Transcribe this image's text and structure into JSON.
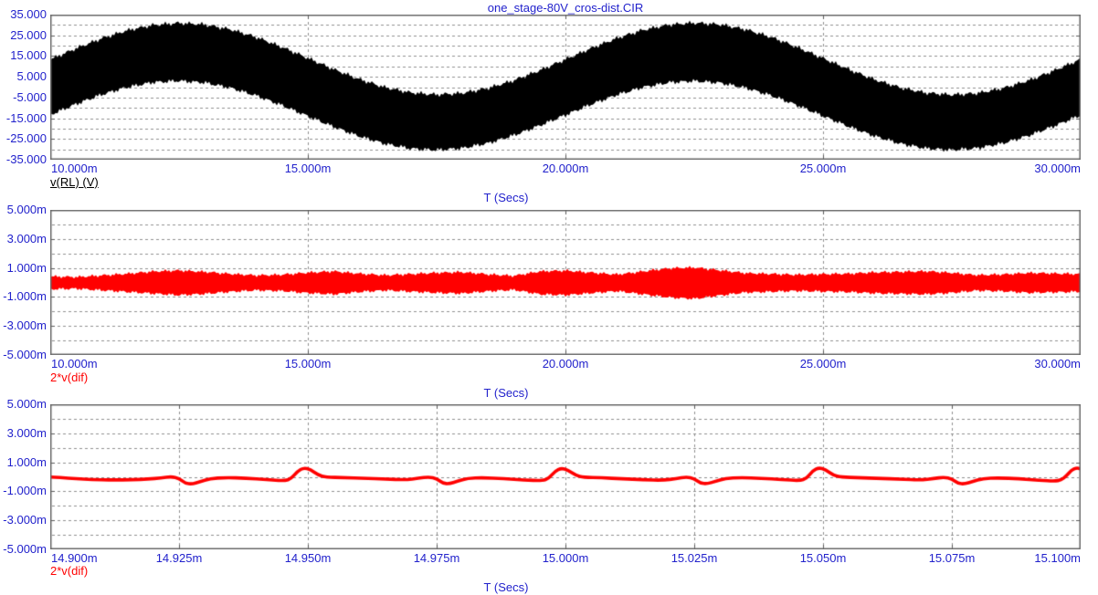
{
  "window": {
    "background": "#ffffff"
  },
  "colors": {
    "axis_text": "#2222cc",
    "grid": "#8f8f8f",
    "frame": "#6e6e6e",
    "tick": "#5a5a5a",
    "trace_black": "#000000",
    "trace_red": "#ff0000"
  },
  "chart_data": [
    {
      "id": "plot1",
      "type": "band",
      "title": "one_stage-80V_cros-dist.CIR",
      "xlabel": "T (Secs)",
      "xlim_ms": [
        10,
        30
      ],
      "ylim": [
        -35,
        35
      ],
      "grid_step": {
        "x_ms": 5,
        "y": 5
      },
      "x_ticks": {
        "values_ms": [
          10,
          15,
          20,
          25,
          30
        ],
        "labels": [
          "10.000m",
          "15.000m",
          "20.000m",
          "25.000m",
          "30.000m"
        ]
      },
      "y_ticks": {
        "values": [
          35,
          25,
          15,
          5,
          -5,
          -15,
          -25,
          -35
        ],
        "labels": [
          "35.000",
          "25.000",
          "15.000",
          "5.000",
          "-5.000",
          "-15.000",
          "-25.000",
          "-35.000"
        ]
      },
      "series": [
        {
          "name": "v(RL)",
          "label": "v(RL) (V)",
          "color": "#000000"
        }
      ],
      "description": "100 Hz sine (amplitude ~17 V) fully filled by high-frequency carrier ripple ~±13.7 V; appears as solid black band",
      "band": {
        "x_ms": [
          10,
          10.5,
          11,
          11.5,
          12,
          12.5,
          13,
          13.5,
          14,
          14.5,
          15,
          15.5,
          16,
          16.5,
          17,
          17.5,
          18,
          18.5,
          19,
          19.5,
          20,
          20.5,
          21,
          21.5,
          22,
          22.5,
          23,
          23.5,
          24,
          24.5,
          25,
          25.5,
          26,
          26.5,
          27,
          27.5,
          28,
          28.5,
          29,
          29.5,
          30
        ],
        "top": [
          13.7,
          18.95,
          23.69,
          27.45,
          29.87,
          30.7,
          29.87,
          27.45,
          23.69,
          18.95,
          13.7,
          8.45,
          3.71,
          -0.05,
          -2.47,
          -3.3,
          -2.47,
          -0.05,
          3.71,
          8.45,
          13.7,
          18.95,
          23.69,
          27.45,
          29.87,
          30.7,
          29.87,
          27.45,
          23.69,
          18.95,
          13.7,
          8.45,
          3.71,
          -0.05,
          -2.47,
          -3.3,
          -2.47,
          -0.05,
          3.71,
          8.45,
          13.7
        ],
        "bottom": [
          -13.7,
          -8.45,
          -3.71,
          0.05,
          2.47,
          3.3,
          2.47,
          0.05,
          -3.71,
          -8.45,
          -13.7,
          -18.95,
          -23.69,
          -27.45,
          -29.87,
          -30.7,
          -29.87,
          -27.45,
          -23.69,
          -18.95,
          -13.7,
          -8.45,
          -3.71,
          0.05,
          2.47,
          3.3,
          2.47,
          0.05,
          -3.71,
          -8.45,
          -13.7,
          -18.95,
          -23.69,
          -27.45,
          -29.87,
          -30.7,
          -29.87,
          -27.45,
          -23.69,
          -18.95,
          -13.7
        ]
      }
    },
    {
      "id": "plot2",
      "type": "band",
      "title": "",
      "xlabel": "T (Secs)",
      "xlim_ms": [
        10,
        30
      ],
      "ylim": [
        -5,
        5
      ],
      "unit": "mV (axis labels use m suffix)",
      "grid_step": {
        "x_ms": 5,
        "y": 1
      },
      "x_ticks": {
        "values_ms": [
          10,
          15,
          20,
          25,
          30
        ],
        "labels": [
          "10.000m",
          "15.000m",
          "20.000m",
          "25.000m",
          "30.000m"
        ]
      },
      "y_ticks": {
        "values": [
          5,
          3,
          1,
          -1,
          -3,
          -5
        ],
        "labels": [
          "5.000m",
          "3.000m",
          "1.000m",
          "-1.000m",
          "-3.000m",
          "-5.000m"
        ]
      },
      "series": [
        {
          "name": "2*v(dif)",
          "label": "2*v(dif)",
          "color": "#ff0000"
        }
      ],
      "description": "Dense high-frequency error signal; amplitude-modulated band about 0, envelope ±0.3m to ±1.1m",
      "band": {
        "x_ms": [
          10,
          10.5,
          11,
          11.5,
          12,
          12.5,
          13,
          13.5,
          14,
          14.5,
          15,
          15.5,
          16,
          16.5,
          17,
          17.5,
          18,
          18.5,
          19,
          19.5,
          20,
          20.5,
          21,
          21.5,
          22,
          22.5,
          23,
          23.5,
          24,
          24.5,
          25,
          25.5,
          26,
          26.5,
          27,
          27.5,
          28,
          28.5,
          29,
          29.5,
          30
        ],
        "top": [
          0.45,
          0.4,
          0.5,
          0.6,
          0.75,
          0.8,
          0.7,
          0.55,
          0.45,
          0.5,
          0.65,
          0.75,
          0.6,
          0.5,
          0.6,
          0.7,
          0.75,
          0.6,
          0.5,
          0.8,
          0.85,
          0.7,
          0.55,
          0.75,
          0.95,
          1.0,
          0.8,
          0.6,
          0.55,
          0.5,
          0.55,
          0.6,
          0.7,
          0.75,
          0.8,
          0.7,
          0.55,
          0.6,
          0.7,
          0.65,
          0.6
        ],
        "bottom": [
          -0.5,
          -0.45,
          -0.55,
          -0.65,
          -0.75,
          -0.85,
          -0.75,
          -0.6,
          -0.5,
          -0.55,
          -0.7,
          -0.8,
          -0.65,
          -0.55,
          -0.65,
          -0.75,
          -0.8,
          -0.65,
          -0.55,
          -0.85,
          -0.9,
          -0.75,
          -0.6,
          -0.8,
          -1.0,
          -1.1,
          -0.85,
          -0.65,
          -0.6,
          -0.55,
          -0.6,
          -0.65,
          -0.75,
          -0.8,
          -0.85,
          -0.75,
          -0.6,
          -0.65,
          -0.75,
          -0.7,
          -0.65
        ]
      }
    },
    {
      "id": "plot3",
      "type": "line",
      "title": "",
      "xlabel": "T (Secs)",
      "xlim_ms": [
        14.9,
        15.1
      ],
      "ylim": [
        -5,
        5
      ],
      "unit": "mV (axis labels use m suffix)",
      "grid_step": {
        "x_ms": 0.025,
        "y": 1
      },
      "x_ticks": {
        "values_ms": [
          14.9,
          14.925,
          14.95,
          14.975,
          15.0,
          15.025,
          15.05,
          15.075,
          15.1
        ],
        "labels": [
          "14.900m",
          "14.925m",
          "14.950m",
          "14.975m",
          "15.000m",
          "15.025m",
          "15.050m",
          "15.075m",
          "15.100m"
        ]
      },
      "y_ticks": {
        "values": [
          5,
          3,
          1,
          -1,
          -3,
          -5
        ],
        "labels": [
          "5.000m",
          "3.000m",
          "1.000m",
          "-1.000m",
          "-3.000m",
          "-5.000m"
        ]
      },
      "series": [
        {
          "name": "2*v(dif)",
          "label": "2*v(dif)",
          "color": "#ff0000"
        }
      ],
      "description": "Zoom of crossover-distortion error: baseline ~-0.15m with alternating dips (~-0.5m near x.x25/x.x75) and bumps (~+0.6m near x.x50/x.x00) every 25 us",
      "line": {
        "t_ms": [
          14.9,
          14.902,
          14.905,
          14.908,
          14.912,
          14.916,
          14.919,
          14.9215,
          14.9235,
          14.925,
          14.9262,
          14.9275,
          14.929,
          14.931,
          14.934,
          14.938,
          14.942,
          14.9455,
          14.9468,
          14.948,
          14.9492,
          14.9505,
          14.952,
          14.9535,
          14.957,
          14.961,
          14.965,
          14.969,
          14.9715,
          14.9735,
          14.975,
          14.9762,
          14.9775,
          14.979,
          14.981,
          14.984,
          14.988,
          14.992,
          14.9955,
          14.9968,
          14.998,
          14.9992,
          15.0005,
          15.002,
          15.0035,
          15.007,
          15.011,
          15.015,
          15.019,
          15.0215,
          15.0235,
          15.025,
          15.0262,
          15.0275,
          15.029,
          15.031,
          15.034,
          15.038,
          15.042,
          15.0455,
          15.0468,
          15.048,
          15.0492,
          15.0505,
          15.052,
          15.0535,
          15.057,
          15.061,
          15.065,
          15.069,
          15.0715,
          15.0735,
          15.075,
          15.0762,
          15.0775,
          15.079,
          15.081,
          15.084,
          15.088,
          15.092,
          15.095,
          15.0962,
          15.0972,
          15.0982,
          15.0992,
          15.1
        ],
        "mv": [
          -0.02,
          -0.06,
          -0.13,
          -0.18,
          -0.22,
          -0.2,
          -0.16,
          -0.08,
          0.02,
          -0.1,
          -0.44,
          -0.5,
          -0.34,
          -0.12,
          -0.05,
          -0.09,
          -0.2,
          -0.28,
          -0.12,
          0.38,
          0.62,
          0.5,
          0.12,
          -0.02,
          -0.06,
          -0.1,
          -0.15,
          -0.21,
          -0.1,
          0.0,
          -0.12,
          -0.45,
          -0.48,
          -0.3,
          -0.1,
          -0.06,
          -0.12,
          -0.22,
          -0.27,
          -0.1,
          0.4,
          0.6,
          0.46,
          0.1,
          -0.03,
          -0.07,
          -0.13,
          -0.2,
          -0.24,
          -0.12,
          0.0,
          -0.12,
          -0.44,
          -0.48,
          -0.32,
          -0.11,
          -0.05,
          -0.1,
          -0.18,
          -0.27,
          -0.11,
          0.42,
          0.63,
          0.49,
          0.11,
          -0.02,
          -0.06,
          -0.11,
          -0.16,
          -0.22,
          -0.12,
          -0.02,
          -0.14,
          -0.46,
          -0.49,
          -0.33,
          -0.12,
          -0.07,
          -0.13,
          -0.24,
          -0.3,
          -0.22,
          0.05,
          0.45,
          0.62,
          0.55
        ]
      }
    }
  ]
}
